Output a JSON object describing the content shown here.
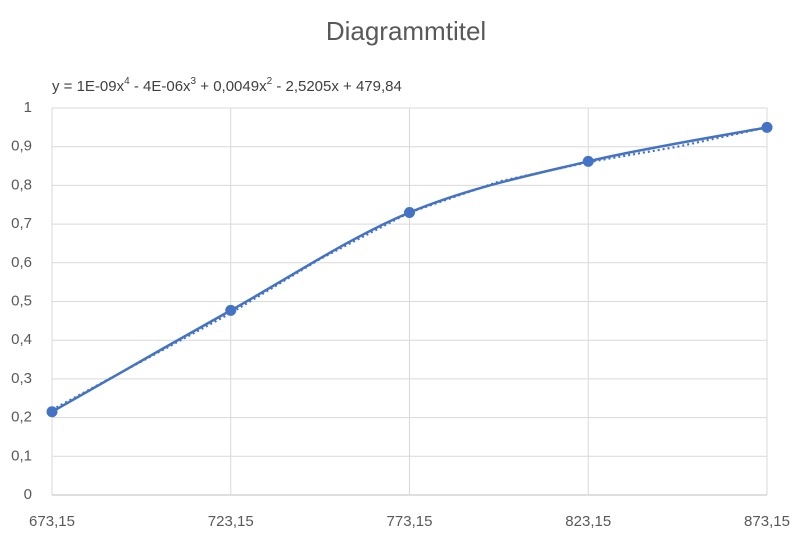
{
  "chart_data": {
    "type": "scatter",
    "title": "Diagrammtitel",
    "x": [
      673.15,
      723.15,
      773.15,
      823.15,
      873.15
    ],
    "values": [
      0.215,
      0.477,
      0.73,
      0.862,
      0.95
    ],
    "color": "#4472c4",
    "smooth": true,
    "trendline": {
      "label_parts": [
        "y = 1E-09x",
        "4",
        " - 4E-06x",
        "3",
        " + 0,0049x",
        "2",
        " - 2,5205x + 479,84"
      ],
      "x": [
        673.15,
        698.15,
        723.15,
        748.15,
        773.15,
        798.15,
        823.15,
        848.15,
        873.15
      ],
      "values": [
        0.22,
        0.345,
        0.47,
        0.61,
        0.73,
        0.81,
        0.86,
        0.9,
        0.95
      ]
    },
    "xlim": [
      673.15,
      873.15
    ],
    "xticks": [
      {
        "value": 673.15,
        "label": "673,15"
      },
      {
        "value": 723.15,
        "label": "723,15"
      },
      {
        "value": 773.15,
        "label": "773,15"
      },
      {
        "value": 823.15,
        "label": "823,15"
      },
      {
        "value": 873.15,
        "label": "873,15"
      }
    ],
    "ylim": [
      0,
      1
    ],
    "yticks": [
      0,
      {
        "value": 0.1,
        "label": "0,1"
      },
      {
        "value": 0.2,
        "label": "0,2"
      },
      {
        "value": 0.3,
        "label": "0,3"
      },
      {
        "value": 0.4,
        "label": "0,4"
      },
      {
        "value": 0.5,
        "label": "0,5"
      },
      {
        "value": 0.6,
        "label": "0,6"
      },
      {
        "value": 0.7,
        "label": "0,7"
      },
      {
        "value": 0.8,
        "label": "0,8"
      },
      {
        "value": 0.9,
        "label": "0,9"
      },
      1
    ],
    "grid": true
  }
}
